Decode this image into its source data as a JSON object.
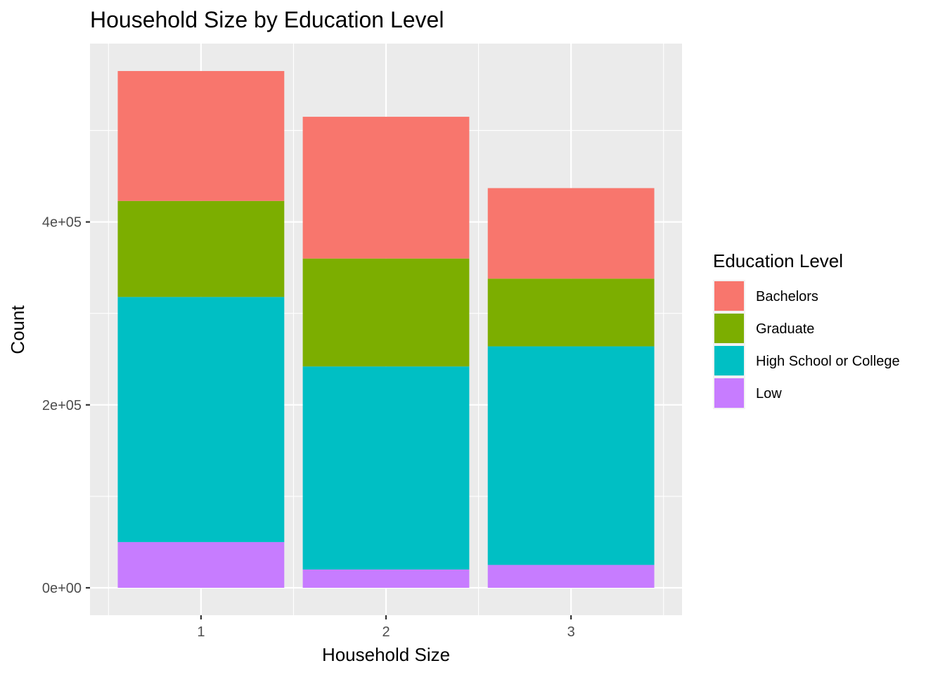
{
  "chart_data": {
    "type": "bar",
    "stacked": true,
    "title": "Household Size by Education Level",
    "xlabel": "Household Size",
    "ylabel": "Count",
    "categories": [
      "1",
      "2",
      "3"
    ],
    "ylim": [
      -30000,
      595000
    ],
    "yticks": [
      0,
      200000,
      400000
    ],
    "ytick_labels": [
      "0e+00",
      "2e+05",
      "4e+05"
    ],
    "grid": true,
    "legend": {
      "title": "Education Level",
      "position": "right"
    },
    "series": [
      {
        "name": "Low",
        "color": "#C77CFF",
        "values": [
          50000,
          20000,
          25000
        ]
      },
      {
        "name": "High School or College",
        "color": "#00BFC4",
        "values": [
          268000,
          222000,
          239000
        ]
      },
      {
        "name": "Graduate",
        "color": "#7CAE00",
        "values": [
          105000,
          118000,
          74000
        ]
      },
      {
        "name": "Bachelors",
        "color": "#F8766D",
        "values": [
          142000,
          155000,
          99000
        ]
      }
    ],
    "legend_order": [
      "Bachelors",
      "Graduate",
      "High School or College",
      "Low"
    ]
  }
}
